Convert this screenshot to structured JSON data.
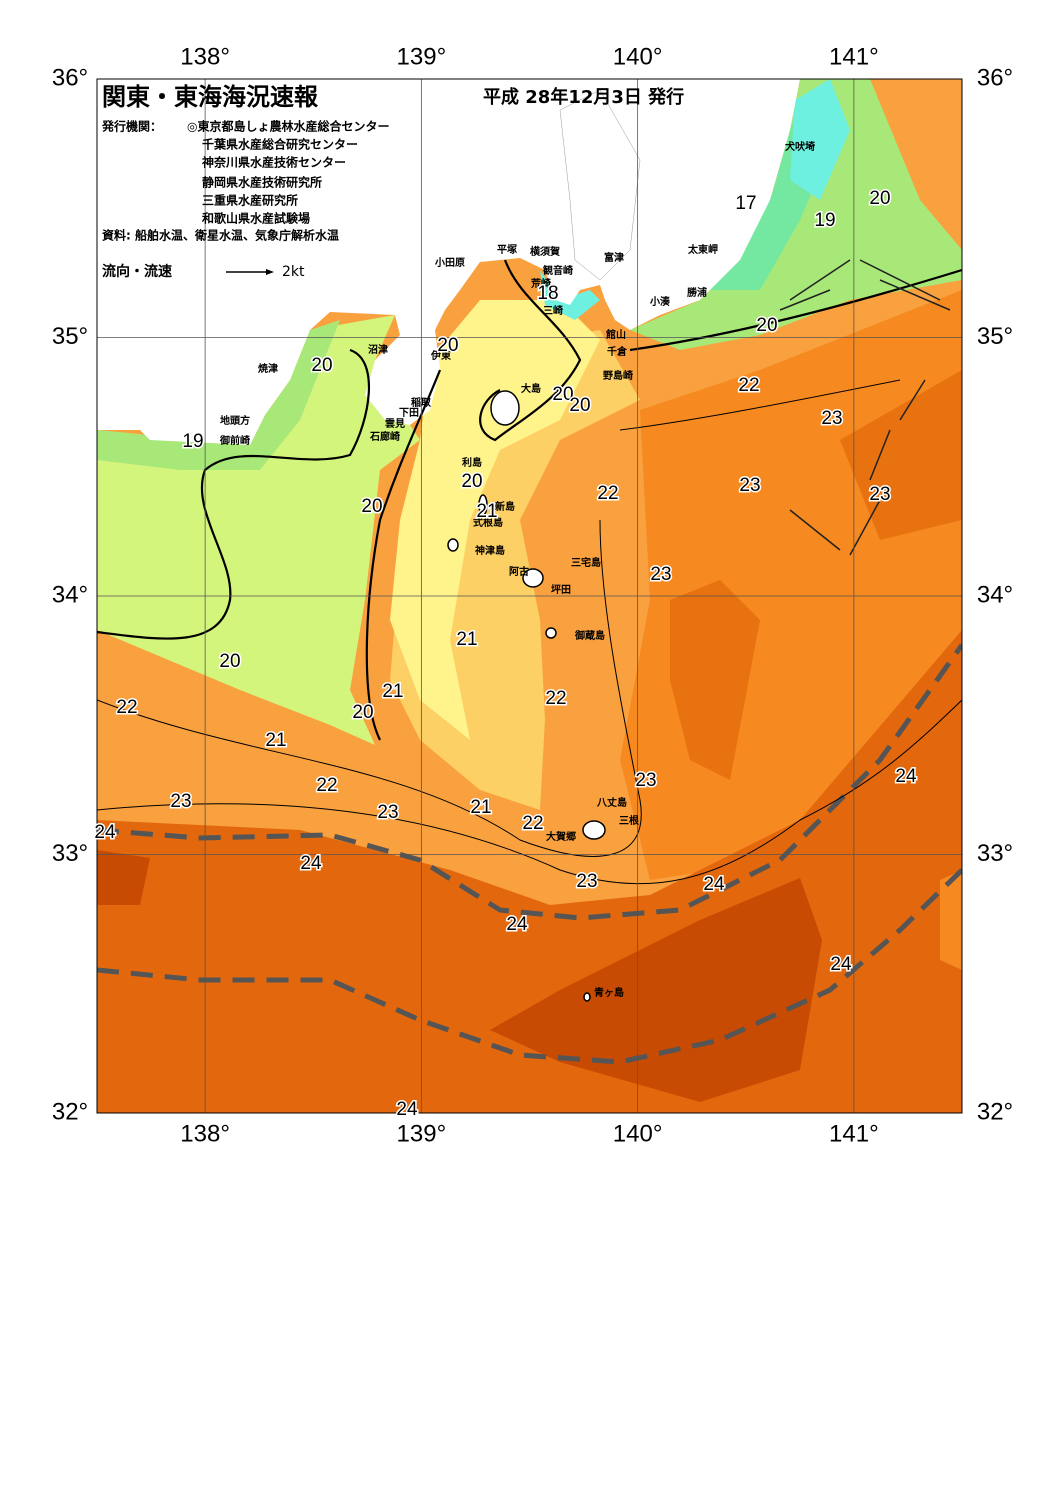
{
  "map": {
    "title": "関東・東海海況速報",
    "date": "平成 28年12月3日 発行",
    "issuer_label": "発行機関：",
    "issuers": [
      "◎東京都島しょ農林水産総合センター",
      "千葉県水産総合研究センター",
      "神奈川県水産技術センター",
      "静岡県水産技術研究所",
      "三重県水産研究所",
      "和歌山県水産試験場"
    ],
    "source": "資料: 船舶水温、衛星水温、気象庁解析水温",
    "legend_label": "流向・流速",
    "legend_scale": "2kt",
    "lon_ticks": [
      {
        "value": 138,
        "label": "138°"
      },
      {
        "value": 139,
        "label": "139°"
      },
      {
        "value": 140,
        "label": "140°"
      },
      {
        "value": 141,
        "label": "141°"
      }
    ],
    "lat_ticks": [
      {
        "value": 36,
        "label": "36°"
      },
      {
        "value": 35,
        "label": "35°"
      },
      {
        "value": 34,
        "label": "34°"
      },
      {
        "value": 33,
        "label": "33°"
      },
      {
        "value": 32,
        "label": "32°"
      }
    ],
    "places": [
      "犬吠埼",
      "太東岬",
      "勝浦",
      "小湊",
      "富津",
      "横須賀",
      "観音崎",
      "荒崎",
      "三崎",
      "平塚",
      "小田原",
      "館山",
      "千倉",
      "野島崎",
      "沼津",
      "伊東",
      "焼津",
      "稲取",
      "下田",
      "雲見",
      "石廊崎",
      "地頭方",
      "御前崎",
      "大島",
      "利島",
      "新島",
      "式根島",
      "神津島",
      "三宅島",
      "阿古",
      "坪田",
      "御蔵島",
      "八丈島",
      "三根",
      "大賀郷",
      "青ヶ島"
    ],
    "temperature_labels": [
      17,
      19,
      20,
      18,
      20,
      20,
      20,
      20,
      20,
      22,
      23,
      19,
      20,
      22,
      23,
      23,
      20,
      21,
      23,
      21,
      20,
      21,
      22,
      20,
      22,
      21,
      23,
      24,
      22,
      23,
      23,
      21,
      22,
      24,
      24,
      23,
      24,
      24,
      24,
      24
    ]
  }
}
